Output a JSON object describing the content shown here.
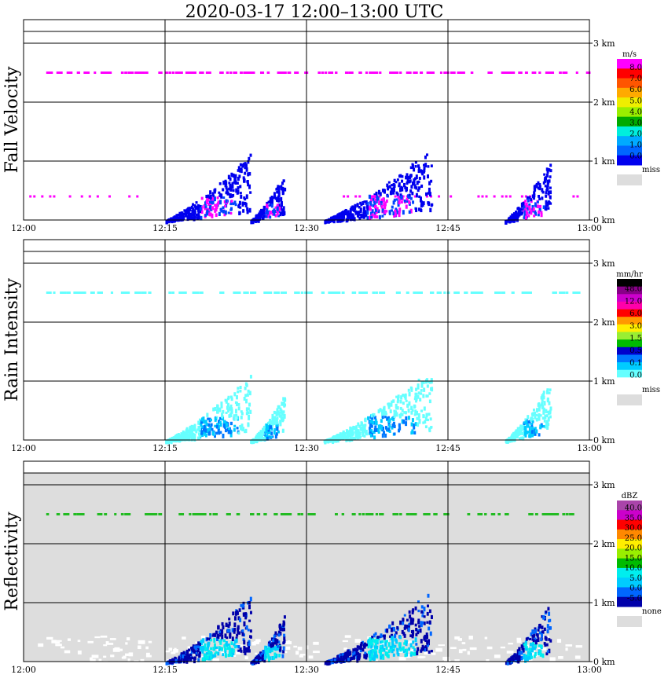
{
  "title": "2020-03-17   12:00–13:00 UTC",
  "chart_data": [
    {
      "type": "heatmap",
      "name": "fall_velocity",
      "ylabel": "Fall Velocity",
      "x_ticks": [
        "12:00",
        "12:15",
        "12:30",
        "12:45",
        "13:00"
      ],
      "y_ticks": [
        "0 km",
        "1 km",
        "2 km",
        "3 km"
      ],
      "ylim_km": [
        0,
        3.5
      ],
      "grid": true,
      "colorbar": {
        "unit": "m/s",
        "colors": [
          "#0000ee",
          "#0066ff",
          "#00aaff",
          "#00eedd",
          "#00aa00",
          "#99ee00",
          "#eeee00",
          "#ffaa00",
          "#ff5500",
          "#ff0000",
          "#ff00ff"
        ],
        "labels": [
          "0.0",
          "1.0",
          "2.0",
          "3.0",
          "4.0",
          "5.0",
          "6.0",
          "7.0",
          "8.0"
        ],
        "miss_label": "miss",
        "miss_color": "#dddddd"
      },
      "background": "#ffffff",
      "bright_band_color": "#ff00ff",
      "precip_color": "#0000ee"
    },
    {
      "type": "heatmap",
      "name": "rain_intensity",
      "ylabel": "Rain Intensity",
      "x_ticks": [
        "12:00",
        "12:15",
        "12:30",
        "12:45",
        "13:00"
      ],
      "y_ticks": [
        "0 km",
        "1 km",
        "2 km",
        "3 km"
      ],
      "ylim_km": [
        0,
        3.5
      ],
      "grid": true,
      "colorbar": {
        "unit": "mm/hr",
        "colors": [
          "#ffffff",
          "#66ffff",
          "#00ccff",
          "#0077ff",
          "#0000cc",
          "#00bb00",
          "#99ee33",
          "#ffee00",
          "#ff9900",
          "#ff0000",
          "#ff00aa",
          "#cc00cc",
          "#880088",
          "#000000"
        ],
        "labels": [
          "0.0",
          "0.1",
          "0.5",
          "1.5",
          "3.0",
          "6.0",
          "12.0",
          "48.0"
        ],
        "miss_label": "miss",
        "miss_color": "#dddddd"
      },
      "background": "#ffffff",
      "bright_band_color": "#66ffff",
      "precip_color": "#66ffff"
    },
    {
      "type": "heatmap",
      "name": "reflectivity",
      "ylabel": "Reflectivity",
      "x_ticks": [
        "12:00",
        "12:15",
        "12:30",
        "12:45",
        "13:00"
      ],
      "y_ticks": [
        "0 km",
        "1 km",
        "2 km",
        "3 km"
      ],
      "ylim_km": [
        0,
        3.5
      ],
      "grid": true,
      "colorbar": {
        "unit": "dBZ",
        "colors": [
          "#0000aa",
          "#0066ff",
          "#00ccff",
          "#00eeee",
          "#00bb00",
          "#99ee00",
          "#ffee00",
          "#ff8800",
          "#ff0000",
          "#cc00cc",
          "#aa44aa"
        ],
        "labels": [
          "-5.0",
          "0.0",
          "5.0",
          "10.0",
          "15.0",
          "20.0",
          "25.0",
          "30.0",
          "35.0",
          "40.0"
        ],
        "miss_label": "none",
        "miss_color": "#dddddd"
      },
      "background": "#dddddd",
      "bright_band_color": "#22bb22",
      "precip_color": "#0000aa"
    }
  ]
}
